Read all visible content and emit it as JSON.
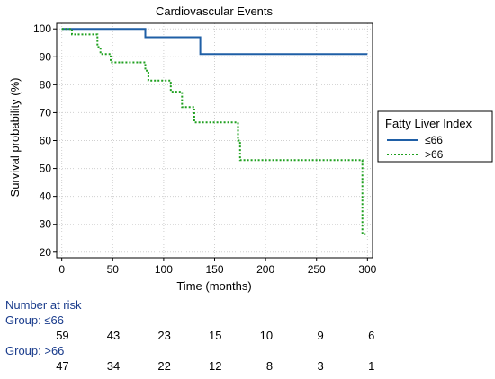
{
  "chart_data": {
    "type": "line",
    "title": "Cardiovascular Events",
    "xlabel": "Time (months)",
    "ylabel": "Survival probability (%)",
    "xlim": [
      -5,
      305
    ],
    "ylim": [
      18,
      102
    ],
    "xticks": [
      0,
      50,
      100,
      150,
      200,
      250,
      300
    ],
    "yticks": [
      20,
      30,
      40,
      50,
      60,
      70,
      80,
      90,
      100
    ],
    "grid": true,
    "legend": {
      "title": "Fatty Liver Index",
      "placement": "right"
    },
    "series": [
      {
        "name": "≤66",
        "color": "#1f5fa6",
        "style": "solid",
        "step_points": [
          [
            0,
            100
          ],
          [
            82,
            100
          ],
          [
            82,
            97
          ],
          [
            136,
            97
          ],
          [
            136,
            91
          ],
          [
            300,
            91
          ]
        ]
      },
      {
        "name": ">66",
        "color": "#1fa01f",
        "style": "dashed",
        "step_points": [
          [
            0,
            100
          ],
          [
            10,
            100
          ],
          [
            10,
            98
          ],
          [
            35,
            98
          ],
          [
            35,
            93.5
          ],
          [
            38,
            93.5
          ],
          [
            38,
            91
          ],
          [
            48,
            91
          ],
          [
            48,
            88
          ],
          [
            82,
            88
          ],
          [
            82,
            85
          ],
          [
            85,
            85
          ],
          [
            85,
            81.5
          ],
          [
            107,
            81.5
          ],
          [
            107,
            77.5
          ],
          [
            118,
            77.5
          ],
          [
            118,
            72
          ],
          [
            130,
            72
          ],
          [
            130,
            66.5
          ],
          [
            173,
            66.5
          ],
          [
            173,
            60
          ],
          [
            175,
            60
          ],
          [
            175,
            53
          ],
          [
            295,
            53
          ],
          [
            295,
            26.5
          ],
          [
            300,
            26.5
          ]
        ]
      }
    ]
  },
  "risk_table": {
    "title": "Number at risk",
    "groups": [
      {
        "label": "Group: ≤66",
        "counts": [
          "59",
          "43",
          "23",
          "15",
          "10",
          "9",
          "6"
        ]
      },
      {
        "label": "Group: >66",
        "counts": [
          "47",
          "34",
          "22",
          "12",
          "8",
          "3",
          "1"
        ]
      }
    ]
  }
}
